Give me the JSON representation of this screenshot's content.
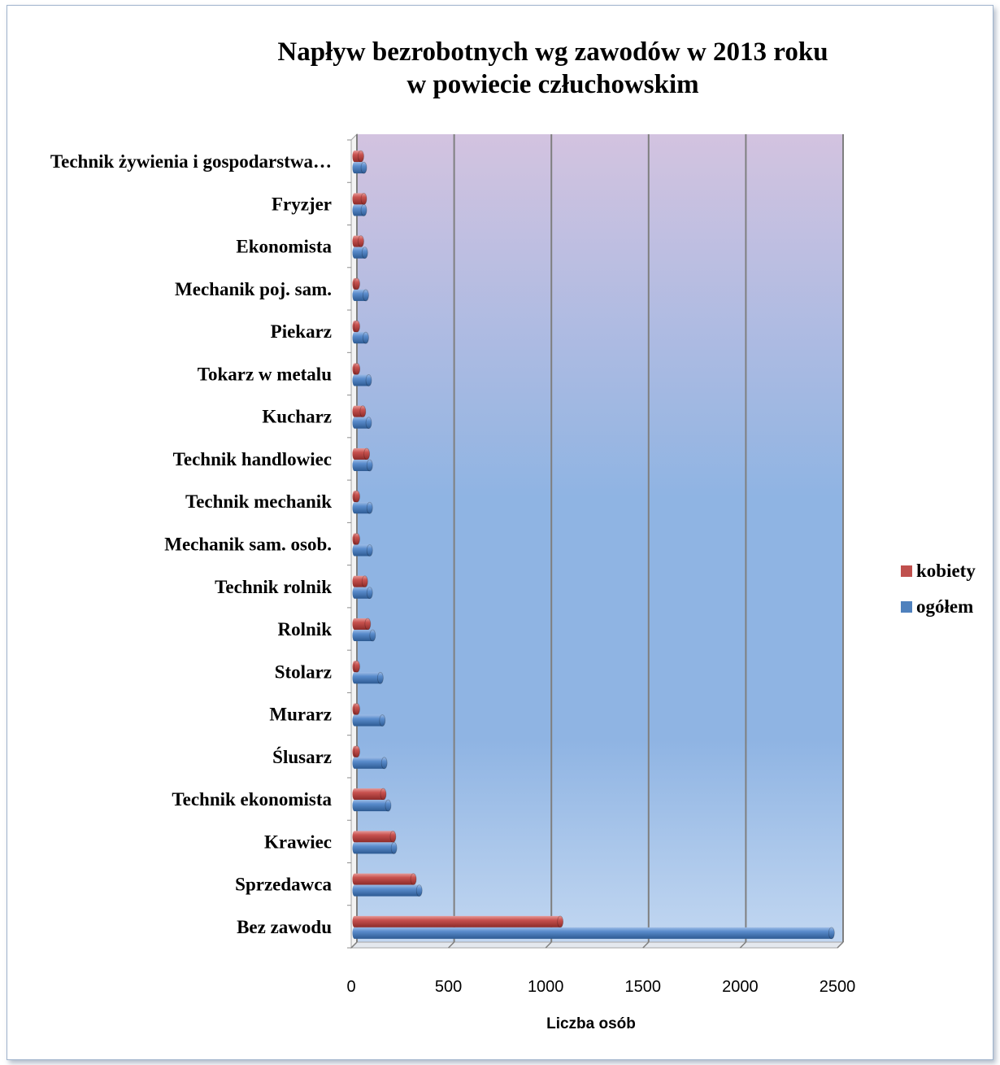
{
  "chart_data": {
    "type": "bar",
    "orientation": "horizontal",
    "title_lines": [
      "Napływ bezrobotnych wg zawodów w 2013 roku",
      "w powiecie człuchowskim"
    ],
    "xlabel": "Liczba osób",
    "xlim": [
      0,
      2500
    ],
    "xticks": [
      "0",
      "500",
      "1000",
      "1500",
      "2000",
      "2500"
    ],
    "xtick_values": [
      0,
      500,
      1000,
      1500,
      2000,
      2500
    ],
    "grid": true,
    "legend_position": "right",
    "categories": [
      "Bez zawodu",
      "Sprzedawca",
      "Krawiec",
      "Technik ekonomista",
      "Ślusarz",
      "Murarz",
      "Stolarz",
      "Rolnik",
      "Technik rolnik",
      "Mechanik sam. osob.",
      "Technik mechanik",
      "Technik handlowiec",
      "Kucharz",
      "Tokarz w metalu",
      "Piekarz",
      "Mechanik poj. sam.",
      "Ekonomista",
      "Fryzjer",
      "Technik żywienia i gospodarstwa…"
    ],
    "series": [
      {
        "name": "ogółem",
        "color": "#4f81bd",
        "values": [
          2470,
          350,
          220,
          190,
          170,
          160,
          150,
          110,
          95,
          95,
          95,
          95,
          90,
          90,
          75,
          75,
          70,
          65,
          65
        ]
      },
      {
        "name": "kobiety",
        "color": "#c0504d",
        "values": [
          1075,
          320,
          215,
          165,
          10,
          10,
          20,
          85,
          70,
          10,
          10,
          80,
          60,
          30,
          20,
          10,
          50,
          65,
          50
        ]
      }
    ]
  }
}
